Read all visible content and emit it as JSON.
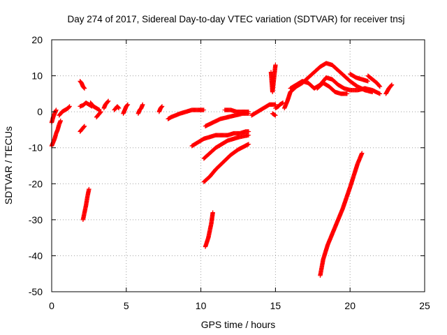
{
  "chart_data": {
    "type": "scatter",
    "title": "Day 274 of 2017, Sidereal Day-to-day VTEC variation (SDTVAR) for receiver tnsj",
    "xlabel": "GPS time / hours",
    "ylabel": "SDTVAR / TECUs",
    "xlim": [
      0,
      25
    ],
    "ylim": [
      -50,
      20
    ],
    "xticks": [
      "0",
      "5",
      "10",
      "15",
      "20",
      "25"
    ],
    "yticks": [
      "20",
      "10",
      "0",
      "-10",
      "-20",
      "-30",
      "-40",
      "-50"
    ],
    "grid": true,
    "marker": "+",
    "color": "#ff0000",
    "series": [
      {
        "name": "arc-01",
        "x": [
          0.0,
          0.1,
          0.2,
          0.3,
          0.4,
          0.5,
          0.6
        ],
        "y": [
          -9.5,
          -8.5,
          -7.5,
          -6.0,
          -5.0,
          -3.5,
          -2.5
        ]
      },
      {
        "name": "arc-02",
        "x": [
          0.0,
          0.1,
          0.2,
          0.3
        ],
        "y": [
          -3.0,
          -1.5,
          -0.5,
          0.5
        ]
      },
      {
        "name": "arc-03",
        "x": [
          0.5,
          0.7,
          0.9,
          1.1,
          1.2
        ],
        "y": [
          -1.0,
          0.0,
          0.5,
          1.0,
          1.5
        ]
      },
      {
        "name": "arc-04",
        "x": [
          1.9,
          2.0,
          2.1,
          2.2
        ],
        "y": [
          8.5,
          8.0,
          7.0,
          6.5
        ]
      },
      {
        "name": "arc-05",
        "x": [
          1.9,
          2.1,
          2.3,
          2.5,
          2.7
        ],
        "y": [
          1.5,
          1.8,
          2.5,
          2.0,
          1.5
        ]
      },
      {
        "name": "arc-06",
        "x": [
          1.9,
          2.0,
          2.1,
          2.2
        ],
        "y": [
          -5.5,
          -5.0,
          -4.5,
          -4.0
        ]
      },
      {
        "name": "arc-07",
        "x": [
          2.1,
          2.2,
          2.3,
          2.4,
          2.5
        ],
        "y": [
          -30.0,
          -28.0,
          -26.0,
          -23.5,
          -21.5
        ]
      },
      {
        "name": "arc-08",
        "x": [
          2.6,
          2.8,
          3.0,
          3.2
        ],
        "y": [
          2.5,
          1.5,
          1.0,
          0.5
        ]
      },
      {
        "name": "arc-09",
        "x": [
          3.0,
          3.1,
          3.2,
          3.3
        ],
        "y": [
          -1.5,
          -1.0,
          -0.5,
          0.0
        ]
      },
      {
        "name": "arc-10",
        "x": [
          3.5,
          3.6,
          3.7,
          3.8
        ],
        "y": [
          1.0,
          2.0,
          2.5,
          3.0
        ]
      },
      {
        "name": "arc-11",
        "x": [
          4.2,
          4.3,
          4.4,
          4.5
        ],
        "y": [
          0.5,
          1.0,
          1.5,
          1.0
        ]
      },
      {
        "name": "arc-12",
        "x": [
          4.8,
          4.9,
          5.0,
          5.1
        ],
        "y": [
          -0.5,
          0.5,
          1.5,
          2.0
        ]
      },
      {
        "name": "arc-13",
        "x": [
          5.8,
          5.9,
          6.0,
          6.1
        ],
        "y": [
          -0.5,
          0.5,
          1.0,
          2.0
        ]
      },
      {
        "name": "arc-14",
        "x": [
          7.2,
          7.3,
          7.4
        ],
        "y": [
          0.0,
          1.0,
          1.5
        ]
      },
      {
        "name": "arc-15",
        "x": [
          7.8,
          8.0,
          8.3,
          8.6,
          9.0,
          9.4,
          9.8,
          10.2
        ],
        "y": [
          -2.0,
          -1.5,
          -1.0,
          -0.5,
          0.0,
          0.5,
          0.5,
          0.5
        ]
      },
      {
        "name": "arc-16",
        "x": [
          9.4,
          9.8,
          10.2,
          10.6,
          11.0,
          11.4,
          11.8,
          12.2,
          12.6,
          13.0,
          13.2
        ],
        "y": [
          -9.5,
          -8.5,
          -7.5,
          -7.0,
          -6.5,
          -6.5,
          -6.5,
          -6.0,
          -6.0,
          -5.5,
          -5.5
        ]
      },
      {
        "name": "arc-17",
        "x": [
          10.2,
          10.6,
          11.0,
          11.4,
          11.8,
          12.2,
          12.6,
          13.2
        ],
        "y": [
          -13.0,
          -11.5,
          -10.0,
          -9.0,
          -8.0,
          -7.5,
          -7.0,
          -6.5
        ]
      },
      {
        "name": "arc-18",
        "x": [
          10.2,
          10.6,
          11.0,
          11.5,
          12.0,
          12.5,
          13.2
        ],
        "y": [
          -19.5,
          -18.0,
          -16.0,
          -14.0,
          -12.0,
          -10.5,
          -9.0
        ]
      },
      {
        "name": "arc-19",
        "x": [
          10.3,
          10.8,
          11.3,
          11.8,
          12.3,
          12.8,
          13.2
        ],
        "y": [
          -4.0,
          -3.0,
          -2.0,
          -1.5,
          -1.0,
          -0.5,
          -0.5
        ]
      },
      {
        "name": "arc-20",
        "x": [
          10.3,
          10.5,
          10.7,
          10.8
        ],
        "y": [
          -37.5,
          -35.0,
          -31.0,
          -28.0
        ]
      },
      {
        "name": "arc-21",
        "x": [
          11.6,
          12.0,
          12.4,
          12.8,
          13.2
        ],
        "y": [
          0.5,
          0.5,
          0.0,
          0.0,
          0.0
        ]
      },
      {
        "name": "arc-22",
        "x": [
          13.4,
          13.8,
          14.2,
          14.6,
          15.0
        ],
        "y": [
          -1.0,
          0.0,
          1.0,
          2.0,
          2.0
        ]
      },
      {
        "name": "arc-23",
        "x": [
          14.7,
          14.8,
          15.0
        ],
        "y": [
          11.0,
          5.5,
          13.0
        ]
      },
      {
        "name": "arc-24",
        "x": [
          14.8,
          15.0
        ],
        "y": [
          -0.5,
          -1.0
        ]
      },
      {
        "name": "arc-25",
        "x": [
          15.0,
          15.2,
          15.3,
          15.5
        ],
        "y": [
          1.0,
          1.5,
          2.0,
          2.5
        ]
      },
      {
        "name": "arc-26",
        "x": [
          15.6,
          15.8,
          16.0,
          16.4,
          16.8,
          17.2,
          17.6,
          18.0,
          18.4,
          18.8,
          19.2,
          19.6,
          20.0,
          20.5,
          21.0,
          21.5
        ],
        "y": [
          1.0,
          3.0,
          5.5,
          7.0,
          8.0,
          9.5,
          11.0,
          12.5,
          13.5,
          13.0,
          11.5,
          10.0,
          8.5,
          7.0,
          6.0,
          5.5
        ]
      },
      {
        "name": "arc-27",
        "x": [
          16.0,
          16.4,
          16.8,
          17.2,
          17.6,
          18.0,
          18.4,
          18.8,
          19.2,
          19.6,
          20.0,
          20.5,
          21.0,
          21.5,
          22.0
        ],
        "y": [
          6.5,
          7.5,
          8.5,
          8.0,
          6.5,
          7.5,
          9.5,
          9.0,
          7.5,
          6.5,
          6.0,
          6.0,
          6.5,
          6.0,
          5.0
        ]
      },
      {
        "name": "arc-28",
        "x": [
          17.8,
          18.2,
          18.6,
          19.0,
          19.4,
          19.8
        ],
        "y": [
          6.5,
          8.0,
          7.0,
          5.5,
          5.0,
          5.0
        ]
      },
      {
        "name": "arc-29",
        "x": [
          20.0,
          20.4,
          20.8,
          21.2
        ],
        "y": [
          10.5,
          9.5,
          9.0,
          8.5
        ]
      },
      {
        "name": "arc-30",
        "x": [
          21.2,
          21.5,
          21.8,
          22.0
        ],
        "y": [
          10.0,
          9.0,
          8.0,
          7.0
        ]
      },
      {
        "name": "arc-31",
        "x": [
          22.4,
          22.6,
          22.8
        ],
        "y": [
          5.0,
          6.5,
          7.5
        ]
      },
      {
        "name": "arc-32",
        "x": [
          18.0,
          18.2,
          18.5,
          19.0,
          19.5,
          20.0,
          20.5,
          20.8
        ],
        "y": [
          -45.5,
          -41.0,
          -37.0,
          -32.0,
          -27.0,
          -21.0,
          -14.5,
          -11.5
        ]
      }
    ]
  }
}
